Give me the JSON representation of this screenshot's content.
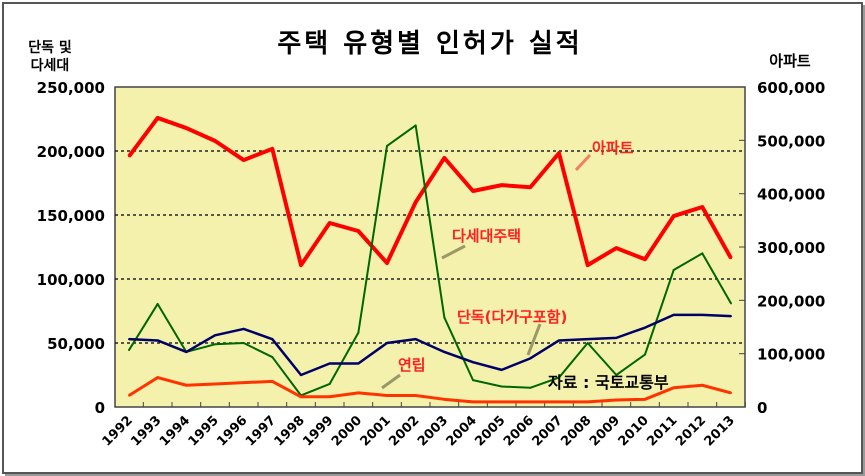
{
  "chart_data": {
    "type": "line",
    "title": "주택 유형별 인허가 실적",
    "ylabel_left": [
      "단독 및",
      "다세대"
    ],
    "ylabel_right": "아파트",
    "source": "자료 : 국토교통부",
    "x": [
      "1992",
      "1993",
      "1994",
      "1995",
      "1996",
      "1997",
      "1998",
      "1999",
      "2000",
      "2001",
      "2002",
      "2003",
      "2004",
      "2005",
      "2006",
      "2007",
      "2008",
      "2009",
      "2010",
      "2011",
      "2012",
      "2013"
    ],
    "ylim_left": [
      0,
      250000
    ],
    "ylim_right": [
      0,
      600000
    ],
    "yticks_left": [
      "0",
      "50,000",
      "100,000",
      "150,000",
      "200,000",
      "250,000"
    ],
    "yticks_right": [
      "0",
      "100,000",
      "200,000",
      "300,000",
      "400,000",
      "500,000",
      "600,000"
    ],
    "grid": "dashed horizontal",
    "series": [
      {
        "name": "아파트",
        "axis": "right",
        "color": "#ff0000",
        "label": "아파트",
        "values": [
          470000,
          542000,
          523000,
          499000,
          463000,
          484000,
          266000,
          345000,
          330000,
          270000,
          384000,
          467000,
          405000,
          416000,
          412000,
          476000,
          266000,
          298000,
          277000,
          358000,
          375000,
          279000
        ]
      },
      {
        "name": "다세대주택",
        "axis": "left",
        "color": "#006600",
        "label": "다세대주택",
        "values": [
          44500,
          80500,
          43000,
          49000,
          50000,
          39000,
          9000,
          18000,
          58000,
          204000,
          220000,
          70000,
          21000,
          16000,
          15000,
          23000,
          50000,
          25000,
          41000,
          107000,
          120000,
          81000
        ]
      },
      {
        "name": "단독(다가구포함)",
        "axis": "left",
        "color": "#000066",
        "label": "단독(다가구포함)",
        "values": [
          53000,
          52000,
          43000,
          56000,
          61000,
          53000,
          25000,
          34000,
          34000,
          50000,
          53000,
          43000,
          35000,
          29000,
          38000,
          52000,
          53000,
          54000,
          62000,
          72000,
          72000,
          71000
        ]
      },
      {
        "name": "연립",
        "axis": "left",
        "color": "#ff3300",
        "label": "연립",
        "values": [
          9000,
          23000,
          17000,
          18000,
          19000,
          20000,
          8000,
          8000,
          11000,
          9000,
          9000,
          6000,
          4000,
          4000,
          4000,
          4000,
          4000,
          5500,
          6000,
          15000,
          17000,
          11000
        ]
      }
    ]
  }
}
